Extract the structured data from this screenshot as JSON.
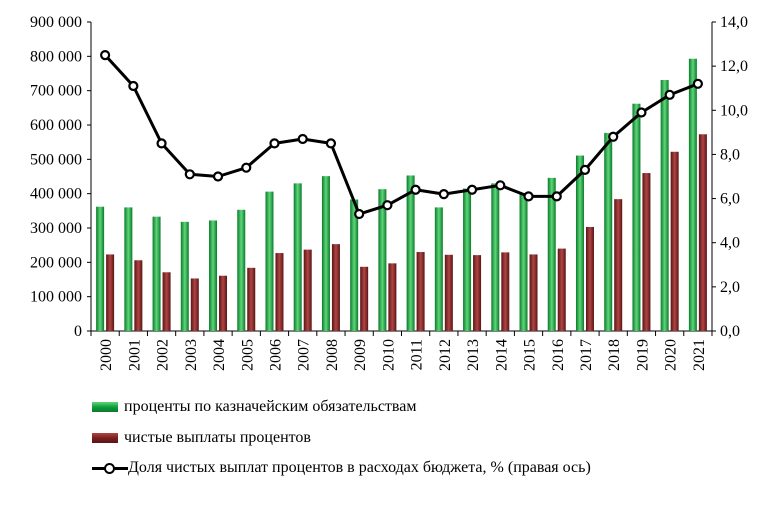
{
  "chart_data": {
    "type": "bar+line",
    "categories": [
      "2000",
      "2001",
      "2002",
      "2003",
      "2004",
      "2005",
      "2006",
      "2007",
      "2008",
      "2009",
      "2010",
      "2011",
      "2012",
      "2013",
      "2014",
      "2015",
      "2016",
      "2017",
      "2018",
      "2019",
      "2020",
      "2021"
    ],
    "series": [
      {
        "name": "проценты по казначейским обязательствам",
        "type": "bar",
        "axis": "left",
        "color": "#119c3c",
        "values": [
          362000,
          360000,
          333000,
          318000,
          322000,
          353000,
          406000,
          430000,
          451000,
          383000,
          413000,
          453000,
          360000,
          415000,
          430000,
          402000,
          446000,
          511000,
          577000,
          662000,
          731000,
          793000
        ]
      },
      {
        "name": "чистые выплаты процентов",
        "type": "bar",
        "axis": "left",
        "color": "#7a1f1f",
        "values": [
          223000,
          206000,
          171000,
          153000,
          161000,
          184000,
          227000,
          237000,
          253000,
          187000,
          197000,
          230000,
          222000,
          221000,
          229000,
          223000,
          240000,
          303000,
          384000,
          460000,
          522000,
          573000
        ]
      },
      {
        "name": "Доля чистых выплат процентов в расходах бюджета, % (правая ось)",
        "type": "line",
        "axis": "right",
        "color": "#000000",
        "values": [
          12.5,
          11.1,
          8.5,
          7.1,
          7.0,
          7.4,
          8.5,
          8.7,
          8.5,
          5.3,
          5.7,
          6.4,
          6.2,
          6.4,
          6.6,
          6.1,
          6.1,
          7.3,
          8.8,
          9.9,
          10.7,
          11.2
        ]
      }
    ],
    "left_axis": {
      "ylim": [
        0,
        900000
      ],
      "ticks": [
        "0",
        "100 000",
        "200 000",
        "300 000",
        "400 000",
        "500 000",
        "600 000",
        "700 000",
        "800 000",
        "900 000"
      ]
    },
    "right_axis": {
      "ylim": [
        0,
        14
      ],
      "ticks": [
        "0,0",
        "2,0",
        "4,0",
        "6,0",
        "8,0",
        "10,0",
        "12,0",
        "14,0"
      ]
    },
    "grid": false,
    "legend_position": "bottom"
  }
}
